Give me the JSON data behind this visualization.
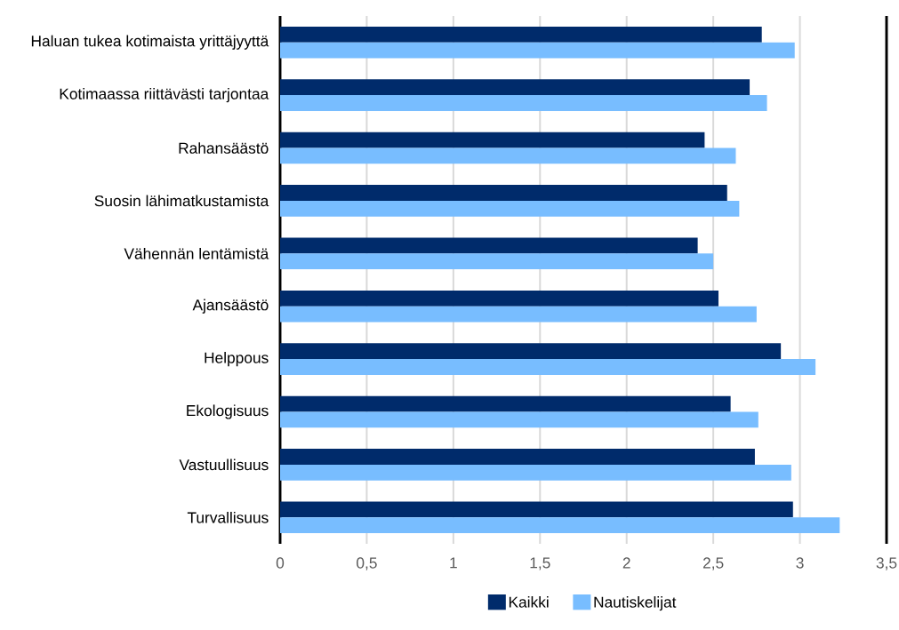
{
  "chart_data": {
    "type": "bar",
    "orientation": "horizontal",
    "categories": [
      "Haluan tukea kotimaista yrittäjyyttä",
      "Kotimaassa riittävästi tarjontaa",
      "Rahansäästö",
      "Suosin lähimatkustamista",
      "Vähennän lentämistä",
      "Ajansäästö",
      "Helppous",
      "Ekologisuus",
      "Vastuullisuus",
      "Turvallisuus"
    ],
    "series": [
      {
        "name": "Kaikki",
        "color": "#002b6b",
        "values": [
          2.78,
          2.71,
          2.45,
          2.58,
          2.41,
          2.53,
          2.89,
          2.6,
          2.74,
          2.96
        ]
      },
      {
        "name": "Nautiskelijat",
        "color": "#78bdff",
        "values": [
          2.97,
          2.81,
          2.63,
          2.65,
          2.5,
          2.75,
          3.09,
          2.76,
          2.95,
          3.23
        ]
      }
    ],
    "xlim": [
      0,
      3.5
    ],
    "xticks": [
      0,
      {
        "value": 0.5,
        "label": "0,5"
      },
      1,
      {
        "value": 1.5,
        "label": "1,5"
      },
      2,
      {
        "value": 2.5,
        "label": "2,5"
      },
      3,
      {
        "value": 3.5,
        "label": "3,5"
      }
    ],
    "grid": "x",
    "legend": "bottom"
  }
}
